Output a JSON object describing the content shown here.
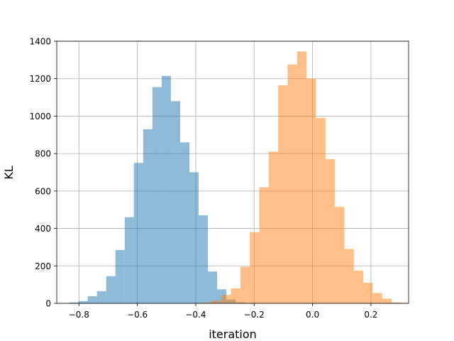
{
  "chart_data": {
    "type": "bar",
    "title": "",
    "xlabel": "iteration",
    "ylabel": "KL",
    "xlim": [
      -0.876,
      0.329
    ],
    "ylim": [
      0,
      1400
    ],
    "xticks": [
      -0.8,
      -0.6,
      -0.4,
      -0.2,
      0.0,
      0.2
    ],
    "xtick_labels": [
      "−0.8",
      "−0.6",
      "−0.4",
      "−0.2",
      "0.0",
      "0.2"
    ],
    "yticks": [
      0,
      200,
      400,
      600,
      800,
      1000,
      1200,
      1400
    ],
    "ytick_labels": [
      "0",
      "200",
      "400",
      "600",
      "800",
      "1000",
      "1200",
      "1400"
    ],
    "grid": true,
    "alpha": 0.5,
    "series": [
      {
        "color": "#1f77b4",
        "x_start": -0.8333,
        "bin_width": 0.03166,
        "counts": [
          5,
          12,
          38,
          65,
          145,
          285,
          460,
          750,
          930,
          1155,
          1215,
          1080,
          860,
          700,
          470,
          170,
          75,
          20,
          5,
          2
        ]
      },
      {
        "color": "#ff7f0e",
        "x_start": -0.3765,
        "bin_width": 0.03237,
        "counts": [
          5,
          15,
          45,
          80,
          195,
          380,
          620,
          810,
          1165,
          1275,
          1345,
          1200,
          990,
          770,
          515,
          290,
          175,
          110,
          55,
          25,
          5,
          2
        ]
      }
    ]
  }
}
